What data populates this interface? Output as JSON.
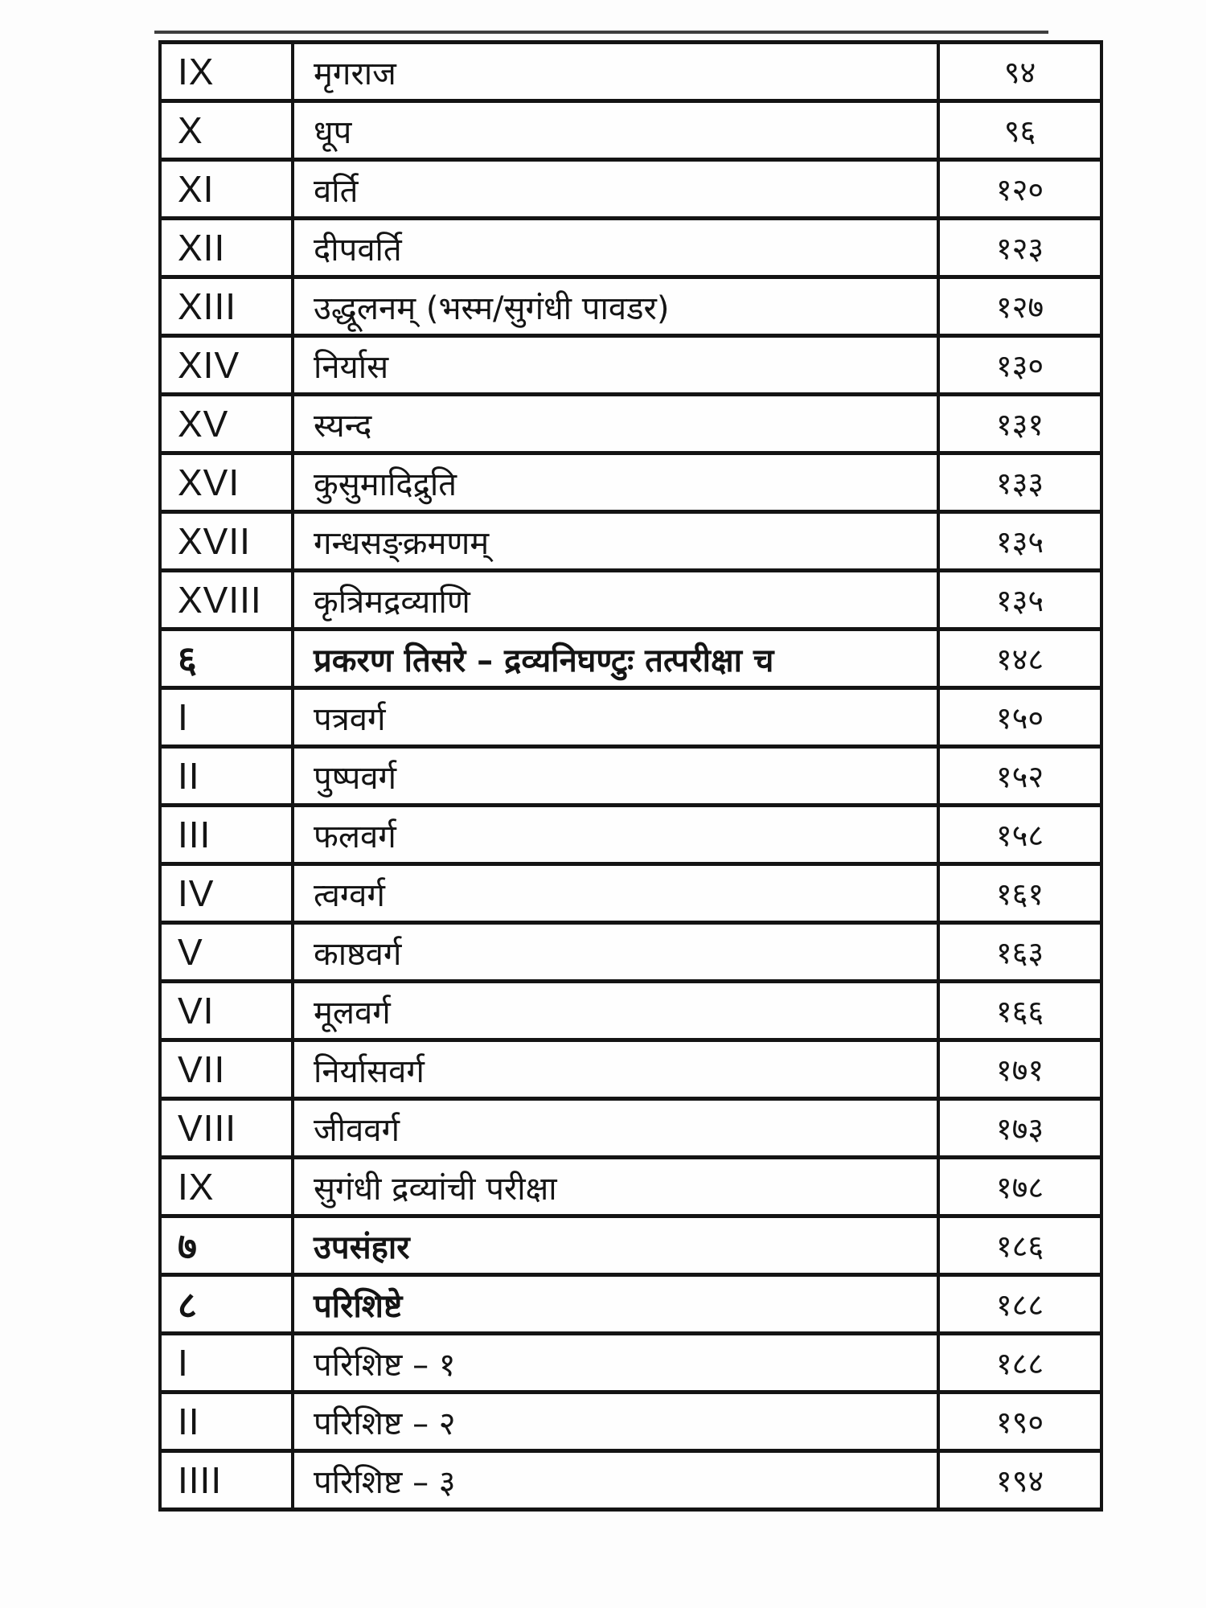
{
  "document": {
    "kind": "table-of-contents-scan",
    "ink_color": "#141414",
    "paper_color": "#fdfdfd"
  },
  "table": {
    "rows": [
      {
        "no": "IX",
        "title": "मृगराज",
        "page": "९४",
        "bold": false
      },
      {
        "no": "X",
        "title": "धूप",
        "page": "९६",
        "bold": false
      },
      {
        "no": "XI",
        "title": "वर्ति",
        "page": "१२०",
        "bold": false
      },
      {
        "no": "XII",
        "title": "दीपवर्ति",
        "page": "१२३",
        "bold": false
      },
      {
        "no": "XIII",
        "title": "उद्धूलनम् (भस्म/सुगंधी पावडर)",
        "page": "१२७",
        "bold": false
      },
      {
        "no": "XIV",
        "title": "निर्यास",
        "page": "१३०",
        "bold": false
      },
      {
        "no": "XV",
        "title": "स्यन्द",
        "page": "१३१",
        "bold": false
      },
      {
        "no": "XVI",
        "title": "कुसुमादिद्रुति",
        "page": "१३३",
        "bold": false
      },
      {
        "no": "XVII",
        "title": "गन्धसङ्क्रमणम्",
        "page": "१३५",
        "bold": false
      },
      {
        "no": "XVIII",
        "title": "कृत्रिमद्रव्याणि",
        "page": "१३५",
        "bold": false
      },
      {
        "no": "६",
        "title": "प्रकरण तिसरे – द्रव्यनिघण्टुः तत्परीक्षा च",
        "page": "१४८",
        "bold": true
      },
      {
        "no": "I",
        "title": "पत्रवर्ग",
        "page": "१५०",
        "bold": false
      },
      {
        "no": "II",
        "title": "पुष्पवर्ग",
        "page": "१५२",
        "bold": false
      },
      {
        "no": "III",
        "title": "फलवर्ग",
        "page": "१५८",
        "bold": false
      },
      {
        "no": "IV",
        "title": "त्वग्वर्ग",
        "page": "१६१",
        "bold": false
      },
      {
        "no": "V",
        "title": "काष्ठवर्ग",
        "page": "१६३",
        "bold": false
      },
      {
        "no": "VI",
        "title": "मूलवर्ग",
        "page": "१६६",
        "bold": false
      },
      {
        "no": "VII",
        "title": "निर्यासवर्ग",
        "page": "१७१",
        "bold": false
      },
      {
        "no": "VIII",
        "title": "जीववर्ग",
        "page": "१७३",
        "bold": false
      },
      {
        "no": "IX",
        "title": "सुगंधी द्रव्यांची परीक्षा",
        "page": "१७८",
        "bold": false
      },
      {
        "no": "७",
        "title": "उपसंहार",
        "page": "१८६",
        "bold": true
      },
      {
        "no": "८",
        "title": "परिशिष्टे",
        "page": "१८८",
        "bold": true
      },
      {
        "no": "I",
        "title": "परिशिष्ट – १",
        "page": "१८८",
        "bold": false
      },
      {
        "no": "II",
        "title": "परिशिष्ट – २",
        "page": "१९०",
        "bold": false
      },
      {
        "no": "IIII",
        "title": "परिशिष्ट – ३",
        "page": "१९४",
        "bold": false
      }
    ]
  }
}
